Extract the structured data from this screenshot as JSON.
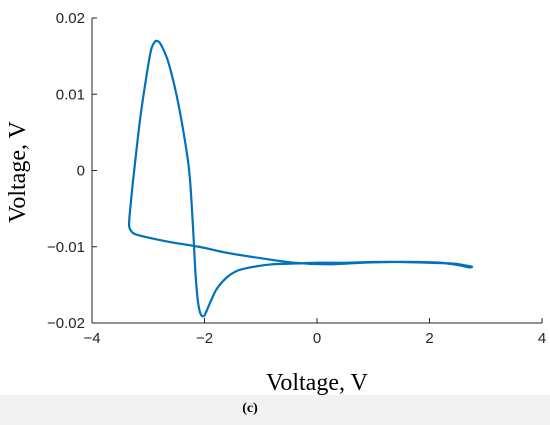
{
  "chart_data": {
    "type": "line",
    "xlabel": "Voltage, V",
    "ylabel": "Voltage, V",
    "caption": "(c)",
    "xlim": [
      -4,
      4
    ],
    "ylim": [
      -0.02,
      0.02
    ],
    "xticks": [
      -4,
      -2,
      0,
      2,
      4
    ],
    "yticks": [
      -0.02,
      -0.01,
      0,
      0.01,
      0.02
    ],
    "xtick_labels": [
      "−4",
      "−2",
      "0",
      "2",
      "4"
    ],
    "ytick_labels": [
      "−0.02",
      "−0.01",
      "0",
      "0.01",
      "0.02"
    ],
    "grid": false,
    "line_color": "#0072BD",
    "series": [
      {
        "x": [
          -2.85,
          -2.8,
          -2.74,
          -2.66,
          -2.58,
          -2.5,
          -2.42,
          -2.35,
          -2.28,
          -2.24,
          -2.2,
          -2.16,
          -2.12,
          -2.08,
          -2.04,
          -2.0,
          -1.95,
          -1.88,
          -1.78,
          -1.6,
          -1.4,
          -1.1,
          -0.8,
          -0.4,
          0.0,
          0.5,
          1.0,
          1.5,
          2.0,
          2.4,
          2.6,
          2.75,
          2.7,
          2.5,
          2.2,
          1.8,
          1.3,
          0.8,
          0.2,
          -0.4,
          -1.0,
          -1.6,
          -2.1,
          -2.6,
          -3.0,
          -3.25,
          -3.33,
          -3.34,
          -3.32,
          -3.28,
          -3.22,
          -3.14,
          -3.04,
          -2.95,
          -2.88,
          -2.85
        ],
        "y": [
          0.017,
          0.0168,
          0.016,
          0.0146,
          0.0125,
          0.01,
          0.007,
          0.004,
          0.0005,
          -0.003,
          -0.008,
          -0.0135,
          -0.017,
          -0.0186,
          -0.0191,
          -0.019,
          -0.0182,
          -0.017,
          -0.0155,
          -0.014,
          -0.0131,
          -0.0126,
          -0.0123,
          -0.0122,
          -0.0121,
          -0.0121,
          -0.012,
          -0.012,
          -0.0121,
          -0.0122,
          -0.0124,
          -0.0126,
          -0.0127,
          -0.0124,
          -0.0121,
          -0.012,
          -0.012,
          -0.0121,
          -0.0123,
          -0.0121,
          -0.0115,
          -0.0108,
          -0.01,
          -0.0094,
          -0.0088,
          -0.0083,
          -0.0076,
          -0.0068,
          -0.005,
          -0.002,
          0.002,
          0.007,
          0.012,
          0.0158,
          0.0169,
          0.017
        ]
      }
    ]
  }
}
